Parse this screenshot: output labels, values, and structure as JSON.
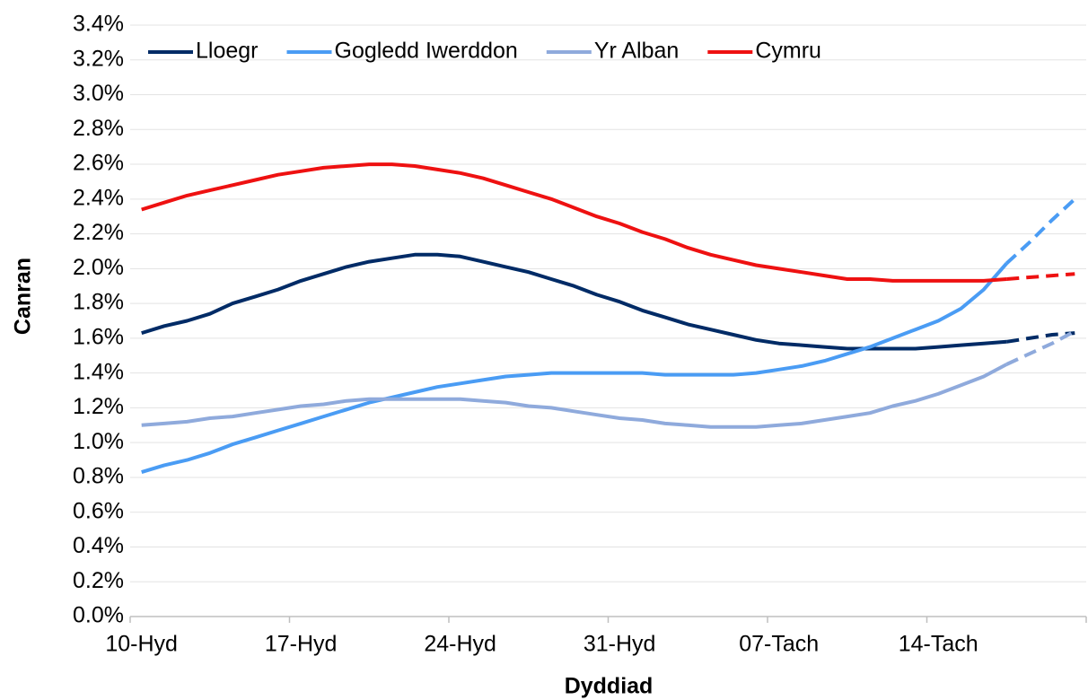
{
  "chart_data": {
    "type": "line",
    "x_label": "Dyddiad",
    "y_label": "Canran",
    "categories": [
      "10-Hyd",
      null,
      null,
      null,
      null,
      null,
      null,
      "17-Hyd",
      null,
      null,
      null,
      null,
      null,
      null,
      "24-Hyd",
      null,
      null,
      null,
      null,
      null,
      null,
      "31-Hyd",
      null,
      null,
      null,
      null,
      null,
      null,
      "07-Tach",
      null,
      null,
      null,
      null,
      null,
      null,
      "14-Tach",
      null,
      null,
      null,
      null,
      null,
      null
    ],
    "projection_start": 38,
    "series": [
      {
        "name": "Lloegr",
        "color": "#002b66",
        "values": [
          1.63,
          1.67,
          1.7,
          1.74,
          1.8,
          1.84,
          1.88,
          1.93,
          1.97,
          2.01,
          2.04,
          2.06,
          2.08,
          2.08,
          2.07,
          2.04,
          2.01,
          1.98,
          1.94,
          1.9,
          1.85,
          1.81,
          1.76,
          1.72,
          1.68,
          1.65,
          1.62,
          1.59,
          1.57,
          1.56,
          1.55,
          1.54,
          1.54,
          1.54,
          1.54,
          1.55,
          1.56,
          1.57,
          1.58,
          1.6,
          1.62,
          1.63
        ]
      },
      {
        "name": "Gogledd Iwerddon",
        "color": "#4a9cf4",
        "values": [
          0.83,
          0.87,
          0.9,
          0.94,
          0.99,
          1.03,
          1.07,
          1.11,
          1.15,
          1.19,
          1.23,
          1.26,
          1.29,
          1.32,
          1.34,
          1.36,
          1.38,
          1.39,
          1.4,
          1.4,
          1.4,
          1.4,
          1.4,
          1.39,
          1.39,
          1.39,
          1.39,
          1.4,
          1.42,
          1.44,
          1.47,
          1.51,
          1.55,
          1.6,
          1.65,
          1.7,
          1.77,
          1.88,
          2.03,
          2.15,
          2.28,
          2.4
        ]
      },
      {
        "name": "Yr Alban",
        "color": "#8faadc",
        "values": [
          1.1,
          1.11,
          1.12,
          1.14,
          1.15,
          1.17,
          1.19,
          1.21,
          1.22,
          1.24,
          1.25,
          1.25,
          1.25,
          1.25,
          1.25,
          1.24,
          1.23,
          1.21,
          1.2,
          1.18,
          1.16,
          1.14,
          1.13,
          1.11,
          1.1,
          1.09,
          1.09,
          1.09,
          1.1,
          1.11,
          1.13,
          1.15,
          1.17,
          1.21,
          1.24,
          1.28,
          1.33,
          1.38,
          1.45,
          1.51,
          1.57,
          1.64
        ]
      },
      {
        "name": "Cymru",
        "color": "#ee1111",
        "values": [
          2.34,
          2.38,
          2.42,
          2.45,
          2.48,
          2.51,
          2.54,
          2.56,
          2.58,
          2.59,
          2.6,
          2.6,
          2.59,
          2.57,
          2.55,
          2.52,
          2.48,
          2.44,
          2.4,
          2.35,
          2.3,
          2.26,
          2.21,
          2.17,
          2.12,
          2.08,
          2.05,
          2.02,
          2.0,
          1.98,
          1.96,
          1.94,
          1.94,
          1.93,
          1.93,
          1.93,
          1.93,
          1.93,
          1.94,
          1.95,
          1.96,
          1.97
        ]
      }
    ],
    "ylim": [
      0,
      3.4
    ],
    "yticks": [
      {
        "value": 0,
        "label": "0.0%"
      },
      {
        "value": 0.2,
        "label": "0.2%"
      },
      {
        "value": 0.4,
        "label": "0.4%"
      },
      {
        "value": 0.6,
        "label": "0.6%"
      },
      {
        "value": 0.8,
        "label": "0.8%"
      },
      {
        "value": 1.0,
        "label": "1.0%"
      },
      {
        "value": 1.2,
        "label": "1.2%"
      },
      {
        "value": 1.4,
        "label": "1.4%"
      },
      {
        "value": 1.6,
        "label": "1.6%"
      },
      {
        "value": 1.8,
        "label": "1.8%"
      },
      {
        "value": 2.0,
        "label": "2.0%"
      },
      {
        "value": 2.2,
        "label": "2.2%"
      },
      {
        "value": 2.4,
        "label": "2.4%"
      },
      {
        "value": 2.6,
        "label": "2.6%"
      },
      {
        "value": 2.8,
        "label": "2.8%"
      },
      {
        "value": 3.0,
        "label": "3.0%"
      },
      {
        "value": 3.2,
        "label": "3.2%"
      },
      {
        "value": 3.4,
        "label": "3.4%"
      }
    ],
    "grid": true,
    "legend": "top"
  }
}
